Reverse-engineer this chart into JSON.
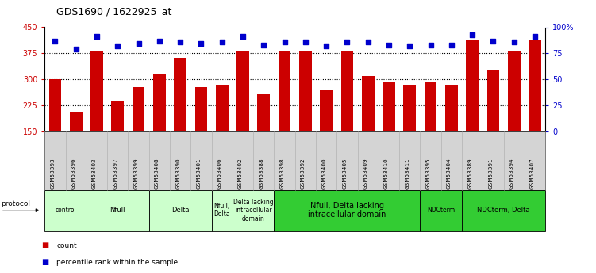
{
  "title": "GDS1690 / 1622925_at",
  "samples": [
    "GSM53393",
    "GSM53396",
    "GSM53403",
    "GSM53397",
    "GSM53399",
    "GSM53408",
    "GSM53390",
    "GSM53401",
    "GSM53406",
    "GSM53402",
    "GSM53388",
    "GSM53398",
    "GSM53392",
    "GSM53400",
    "GSM53405",
    "GSM53409",
    "GSM53410",
    "GSM53411",
    "GSM53395",
    "GSM53404",
    "GSM53389",
    "GSM53391",
    "GSM53394",
    "GSM53407"
  ],
  "counts": [
    300,
    205,
    383,
    237,
    278,
    315,
    363,
    278,
    283,
    383,
    257,
    383,
    383,
    268,
    383,
    310,
    290,
    285,
    290,
    285,
    415,
    328,
    383,
    415
  ],
  "percentile": [
    87,
    79,
    91,
    82,
    84,
    87,
    86,
    84,
    86,
    91,
    83,
    86,
    86,
    82,
    86,
    86,
    83,
    82,
    83,
    83,
    93,
    87,
    86,
    91
  ],
  "groups": [
    {
      "label": "control",
      "start": 0,
      "end": 2,
      "dark": false
    },
    {
      "label": "Nfull",
      "start": 2,
      "end": 5,
      "dark": false
    },
    {
      "label": "Delta",
      "start": 5,
      "end": 8,
      "dark": false
    },
    {
      "label": "Nfull,\nDelta",
      "start": 8,
      "end": 9,
      "dark": false
    },
    {
      "label": "Delta lacking\nintracellular\ndomain",
      "start": 9,
      "end": 11,
      "dark": false
    },
    {
      "label": "Nfull, Delta lacking\nintracellular domain",
      "start": 11,
      "end": 18,
      "dark": true
    },
    {
      "label": "NDCterm",
      "start": 18,
      "end": 20,
      "dark": true
    },
    {
      "label": "NDCterm, Delta",
      "start": 20,
      "end": 24,
      "dark": true
    }
  ],
  "ylim_left": [
    150,
    450
  ],
  "ylim_right": [
    0,
    100
  ],
  "yticks_left": [
    150,
    225,
    300,
    375,
    450
  ],
  "yticks_right": [
    0,
    25,
    50,
    75,
    100
  ],
  "bar_color": "#cc0000",
  "dot_color": "#0000cc",
  "light_green": "#ccffcc",
  "dark_green": "#33cc33",
  "sample_bg": "#d4d4d4",
  "bg_color": "#ffffff"
}
